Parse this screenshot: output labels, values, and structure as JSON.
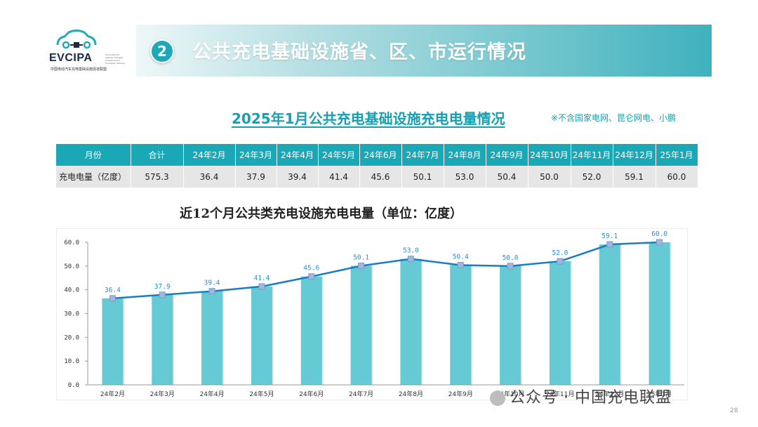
{
  "logo": {
    "brand": "EVCIPA",
    "tagline": "China Electric Vehicle Charging Infrastructure Promotion Alliance",
    "org": "中国电动汽车充电基础设施促进联盟"
  },
  "header": {
    "badge": "2",
    "title": "公共充电基础设施省、区、市运行情况"
  },
  "subtitle": "2025年1月公共充电基础设施充电电量情况",
  "note": "※不含国家电网、昆仑网电、小鹏",
  "table": {
    "headers": [
      "月份",
      "合计",
      "24年2月",
      "24年3月",
      "24年4月",
      "24年5月",
      "24年6月",
      "24年7月",
      "24年8月",
      "24年9月",
      "24年10月",
      "24年11月",
      "24年12月",
      "25年1月"
    ],
    "row_label": "充电电量（亿度）",
    "values": [
      "575.3",
      "36.4",
      "37.9",
      "39.4",
      "41.4",
      "45.6",
      "50.1",
      "53.0",
      "50.4",
      "50.0",
      "52.0",
      "59.1",
      "60.0"
    ]
  },
  "chart_title": "近12个月公共类充电设施充电电量（单位：亿度）",
  "chart_data": {
    "type": "bar",
    "categories": [
      "24年2月",
      "24年3月",
      "24年4月",
      "24年5月",
      "24年6月",
      "24年7月",
      "24年8月",
      "24年9月",
      "24年10月",
      "24年11月",
      "24年12月",
      "25年1月"
    ],
    "values": [
      36.4,
      37.9,
      39.4,
      41.4,
      45.6,
      50.1,
      53.0,
      50.4,
      50.0,
      52.0,
      59.1,
      60.0
    ],
    "overlay_line": true,
    "ylim": [
      0,
      60
    ],
    "yticks": [
      "0.0",
      "10.0",
      "20.0",
      "30.0",
      "40.0",
      "50.0",
      "60.0"
    ],
    "data_labels": [
      "36.4",
      "37.9",
      "39.4",
      "41.4",
      "45.6",
      "50.1",
      "53.0",
      "50.4",
      "50.0",
      "52.0",
      "59.1",
      "60.0"
    ],
    "grid": false,
    "colors": {
      "bar": "#66cad4",
      "line": "#1a7cc1",
      "marker": "#9fb7d8",
      "label": "#2a8fd6"
    }
  },
  "footer": {
    "text": "公众号 · 中国充电联盟",
    "page": "28"
  }
}
